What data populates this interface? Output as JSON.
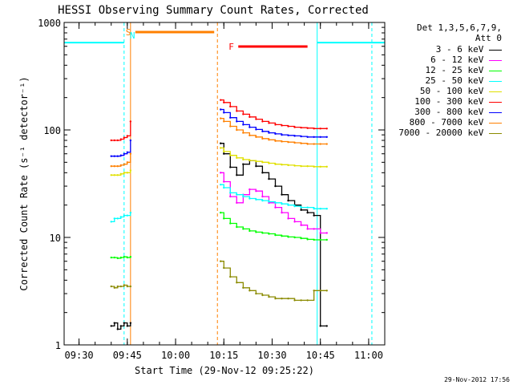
{
  "chart_data": {
    "type": "line",
    "title": "HESSI Observing Summary Count Rates, Corrected",
    "xlabel": "Start Time (29-Nov-12 09:25:22)",
    "ylabel": "Corrected Count Rate (s⁻¹ detector⁻¹)",
    "y_scale": "log",
    "ylim": [
      1,
      1000
    ],
    "xlim": [
      "09:25:22",
      "11:05"
    ],
    "x_ticks": [
      "09:30",
      "09:45",
      "10:00",
      "10:15",
      "10:30",
      "10:45",
      "11:00"
    ],
    "y_ticks": [
      "1",
      "10",
      "100",
      "1000"
    ],
    "grid": false,
    "legend": {
      "placement": "top-right",
      "header": [
        "Det 1,3,5,6,7,9,",
        "Att 0"
      ]
    },
    "footer_timestamp": "29-Nov-2012 17:56",
    "data_segments": [
      {
        "start": "09:40",
        "end": "09:46"
      },
      {
        "start": "10:14",
        "end": "10:47"
      }
    ],
    "series": [
      {
        "name": "3 - 6 keV",
        "color": "#000000",
        "x": [
          "09:40",
          "09:41",
          "09:42",
          "09:43",
          "09:44",
          "09:45",
          "09:46",
          "10:14",
          "10:15",
          "10:17",
          "10:19",
          "10:21",
          "10:23",
          "10:25",
          "10:27",
          "10:29",
          "10:31",
          "10:33",
          "10:35",
          "10:37",
          "10:39",
          "10:41",
          "10:43",
          "10:45",
          "10:47"
        ],
        "y": [
          1.5,
          1.6,
          1.4,
          1.5,
          1.6,
          1.5,
          1.6,
          75,
          60,
          45,
          38,
          48,
          52,
          46,
          40,
          35,
          30,
          25,
          22,
          20,
          18,
          17,
          16,
          1.5,
          1.5
        ]
      },
      {
        "name": "6 - 12 keV",
        "color": "#ff00ff",
        "x": [
          "10:14",
          "10:15",
          "10:17",
          "10:19",
          "10:21",
          "10:23",
          "10:25",
          "10:27",
          "10:29",
          "10:31",
          "10:33",
          "10:35",
          "10:37",
          "10:39",
          "10:41",
          "10:43",
          "10:45",
          "10:47"
        ],
        "y": [
          40,
          33,
          24,
          21,
          25,
          28,
          27,
          24,
          21,
          19,
          17,
          15,
          14,
          13,
          12,
          12,
          11,
          11
        ]
      },
      {
        "name": "12 - 25 keV",
        "color": "#00ff00",
        "x": [
          "09:40",
          "09:41",
          "09:42",
          "09:43",
          "09:44",
          "09:45",
          "09:46",
          "10:14",
          "10:15",
          "10:17",
          "10:19",
          "10:21",
          "10:23",
          "10:25",
          "10:27",
          "10:29",
          "10:31",
          "10:33",
          "10:35",
          "10:37",
          "10:39",
          "10:41",
          "10:43",
          "10:45",
          "10:47"
        ],
        "y": [
          6.5,
          6.5,
          6.4,
          6.5,
          6.6,
          6.5,
          6.6,
          17,
          15,
          13.5,
          12.5,
          12,
          11.5,
          11.2,
          11,
          10.8,
          10.5,
          10.3,
          10.1,
          10,
          9.8,
          9.6,
          9.5,
          9.5,
          9.5
        ]
      },
      {
        "name": "25 - 50 keV",
        "color": "#00ffff",
        "x": [
          "09:40",
          "09:41",
          "09:42",
          "09:43",
          "09:44",
          "09:45",
          "09:46",
          "10:14",
          "10:15",
          "10:17",
          "10:19",
          "10:21",
          "10:23",
          "10:25",
          "10:27",
          "10:29",
          "10:31",
          "10:33",
          "10:35",
          "10:37",
          "10:39",
          "10:41",
          "10:43",
          "10:45",
          "10:47"
        ],
        "y": [
          14,
          15,
          15,
          15.5,
          16,
          16,
          17,
          31,
          29,
          26,
          25,
          24,
          23,
          22.5,
          22,
          21.5,
          21,
          20.5,
          20,
          19.5,
          19,
          19,
          18.5,
          18.5,
          18.5
        ]
      },
      {
        "name": "50 - 100 keV",
        "color": "#e0e000",
        "x": [
          "09:40",
          "09:41",
          "09:42",
          "09:43",
          "09:44",
          "09:45",
          "09:46",
          "10:14",
          "10:15",
          "10:17",
          "10:19",
          "10:21",
          "10:23",
          "10:25",
          "10:27",
          "10:29",
          "10:31",
          "10:33",
          "10:35",
          "10:37",
          "10:39",
          "10:41",
          "10:43",
          "10:45",
          "10:47"
        ],
        "y": [
          38,
          38,
          38,
          39,
          40,
          40,
          42,
          68,
          63,
          58,
          55,
          53,
          52,
          51,
          50,
          49,
          48,
          47.5,
          47,
          46.5,
          46,
          46,
          45.5,
          45.5,
          45.5
        ]
      },
      {
        "name": "100 - 300 keV",
        "color": "#ff0000",
        "x": [
          "09:40",
          "09:41",
          "09:42",
          "09:43",
          "09:44",
          "09:45",
          "09:46",
          "10:14",
          "10:15",
          "10:17",
          "10:19",
          "10:21",
          "10:23",
          "10:25",
          "10:27",
          "10:29",
          "10:31",
          "10:33",
          "10:35",
          "10:37",
          "10:39",
          "10:41",
          "10:43",
          "10:45",
          "10:47"
        ],
        "y": [
          80,
          80,
          80,
          82,
          85,
          88,
          120,
          190,
          180,
          165,
          150,
          140,
          132,
          126,
          120,
          116,
          112,
          110,
          108,
          106,
          105,
          104,
          103,
          103,
          103
        ]
      },
      {
        "name": "300 - 800 keV",
        "color": "#0000ff",
        "x": [
          "09:40",
          "09:41",
          "09:42",
          "09:43",
          "09:44",
          "09:45",
          "09:46",
          "10:14",
          "10:15",
          "10:17",
          "10:19",
          "10:21",
          "10:23",
          "10:25",
          "10:27",
          "10:29",
          "10:31",
          "10:33",
          "10:35",
          "10:37",
          "10:39",
          "10:41",
          "10:43",
          "10:45",
          "10:47"
        ],
        "y": [
          57,
          57,
          57,
          58,
          60,
          62,
          80,
          155,
          145,
          130,
          120,
          112,
          106,
          101,
          97,
          94,
          92,
          90,
          89,
          88,
          87,
          86,
          86,
          86,
          86
        ]
      },
      {
        "name": "800 - 7000 keV",
        "color": "#ff8000",
        "x": [
          "09:40",
          "09:41",
          "09:42",
          "09:43",
          "09:44",
          "09:45",
          "09:46",
          "10:14",
          "10:15",
          "10:17",
          "10:19",
          "10:21",
          "10:23",
          "10:25",
          "10:27",
          "10:29",
          "10:31",
          "10:33",
          "10:35",
          "10:37",
          "10:39",
          "10:41",
          "10:43",
          "10:45",
          "10:47"
        ],
        "y": [
          46,
          46,
          46,
          47,
          48,
          50,
          60,
          128,
          120,
          108,
          100,
          94,
          89,
          86,
          83,
          81,
          79,
          78,
          77,
          76,
          75,
          74,
          74,
          74,
          74
        ]
      },
      {
        "name": "7000 - 20000 keV",
        "color": "#8b8b00",
        "x": [
          "09:40",
          "09:41",
          "09:42",
          "09:43",
          "09:44",
          "09:45",
          "09:46",
          "10:14",
          "10:15",
          "10:17",
          "10:19",
          "10:21",
          "10:23",
          "10:25",
          "10:27",
          "10:29",
          "10:31",
          "10:33",
          "10:35",
          "10:37",
          "10:39",
          "10:41",
          "10:43",
          "10:45",
          "10:47"
        ],
        "y": [
          3.5,
          3.4,
          3.5,
          3.5,
          3.6,
          3.5,
          3.5,
          6,
          5.2,
          4.3,
          3.8,
          3.4,
          3.2,
          3.0,
          2.9,
          2.8,
          2.7,
          2.7,
          2.7,
          2.6,
          2.6,
          2.6,
          3.2,
          3.2,
          3.2
        ]
      }
    ],
    "flag_lines": [
      {
        "label": "S",
        "color": "#ff8000",
        "start": "09:44",
        "end": "10:12"
      },
      {
        "label": "F",
        "color": "#ff0000",
        "start": "10:16",
        "end": "10:41"
      }
    ],
    "flag_markers": [
      {
        "label": "N",
        "color": "#00ffff",
        "at": "09:46"
      }
    ],
    "bands": [
      {
        "color": "#00ffff",
        "style": "solid",
        "value": 650,
        "segments": [
          {
            "start": "09:25:22",
            "end": "09:44"
          },
          {
            "start": "10:44",
            "end": "11:05"
          }
        ]
      }
    ],
    "vlines": [
      {
        "color": "#00ffff",
        "style": "solid",
        "at": "09:25:22"
      },
      {
        "color": "#00ffff",
        "style": "dashed",
        "at": "09:44"
      },
      {
        "color": "#00ffff",
        "style": "solid",
        "at": "10:44"
      },
      {
        "color": "#00ffff",
        "style": "dashed",
        "at": "11:01"
      },
      {
        "color": "#ff8000",
        "style": "solid",
        "at": "09:46"
      },
      {
        "color": "#ff8000",
        "style": "dashed",
        "at": "10:13"
      }
    ]
  }
}
